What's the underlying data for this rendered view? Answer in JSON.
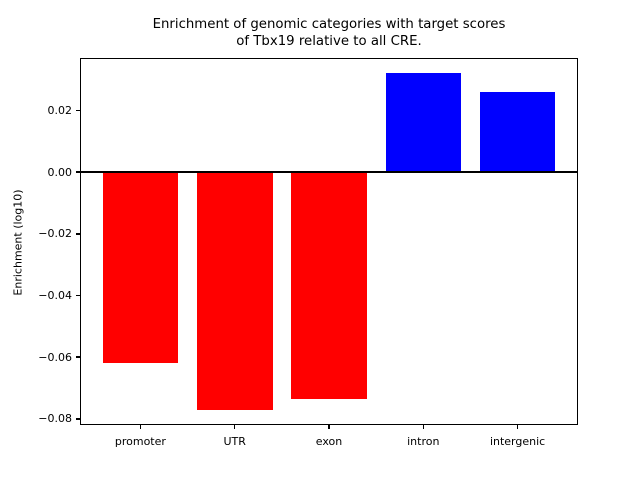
{
  "figure": {
    "background": "#ffffff"
  },
  "chart_data": {
    "type": "bar",
    "title": "Enrichment of genomic categories with target scores\nof Tbx19 relative to all CRE.",
    "xlabel": "",
    "ylabel": "Enrichment (log10)",
    "categories": [
      "promoter",
      "UTR",
      "exon",
      "intron",
      "intergenic"
    ],
    "values": [
      -0.062,
      -0.077,
      -0.0735,
      0.032,
      0.026
    ],
    "bar_colors": [
      "#ff0000",
      "#ff0000",
      "#ff0000",
      "#0000ff",
      "#0000ff"
    ],
    "negative_color": "#ff0000",
    "positive_color": "#0000ff",
    "yticks": [
      0.02,
      0.0,
      -0.02,
      -0.04,
      -0.06,
      -0.08
    ],
    "ytick_labels": [
      "0.02",
      "0.00",
      "−0.02",
      "−0.04",
      "−0.06",
      "−0.08"
    ],
    "ylim": [
      -0.082,
      0.037
    ],
    "xlim": [
      -0.64,
      4.64
    ],
    "bar_width": 0.8,
    "grid": false,
    "legend": false,
    "zero_line": true
  }
}
